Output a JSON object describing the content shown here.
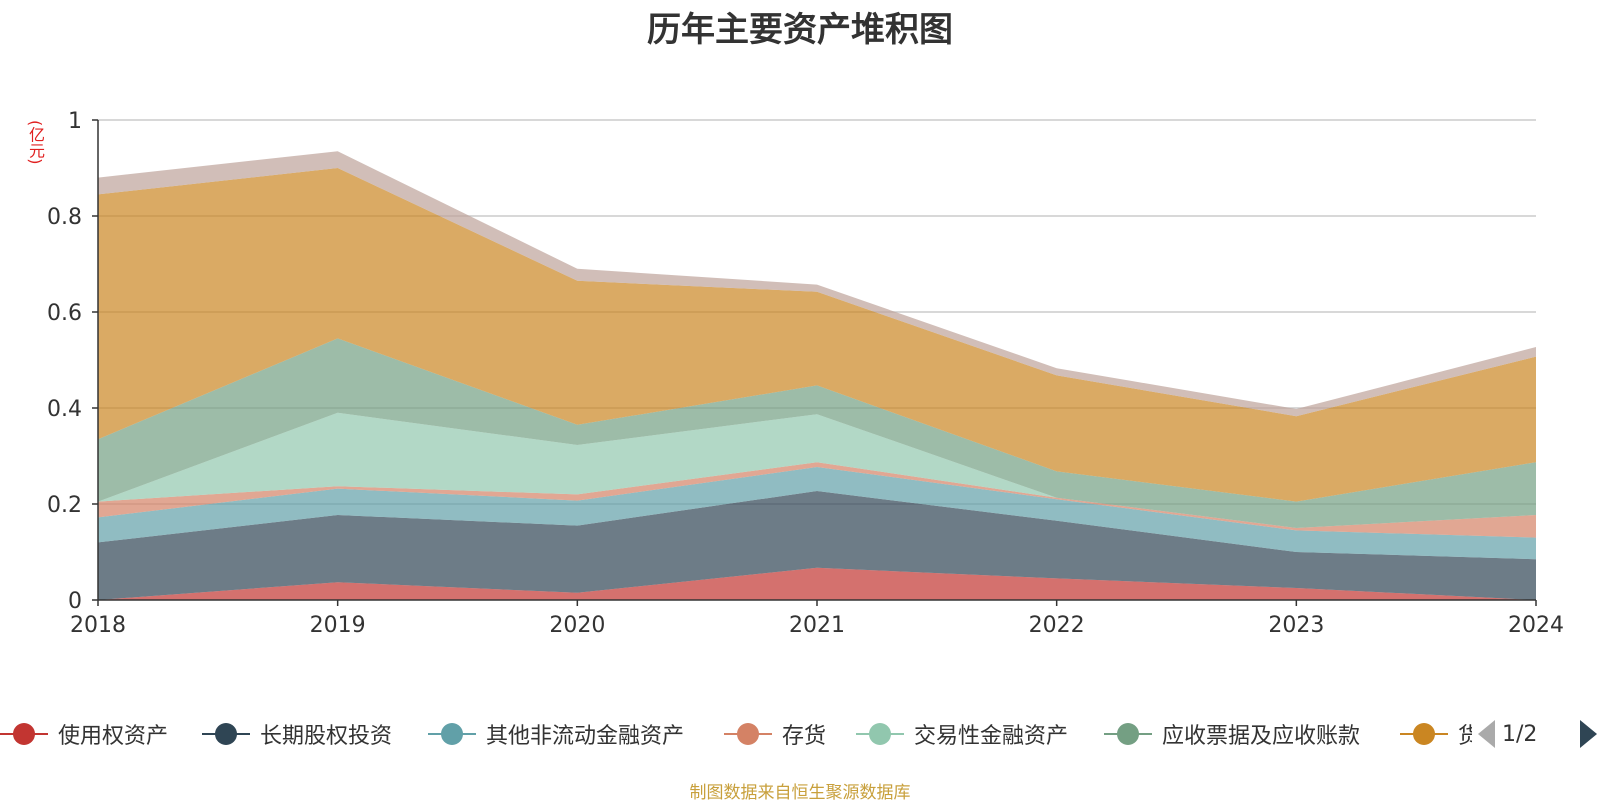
{
  "chart_data": {
    "type": "area",
    "stacked": true,
    "title": "历年主要资产堆积图",
    "unit": "(亿元)",
    "categories": [
      "2018",
      "2019",
      "2020",
      "2021",
      "2022",
      "2023",
      "2024"
    ],
    "ylim": [
      0,
      1
    ],
    "yticks": [
      "0",
      "0.2",
      "0.4",
      "0.6",
      "0.8",
      "1"
    ],
    "grid": true,
    "legend_position": "bottom",
    "legend_page": "1/2",
    "series": [
      {
        "name": "使用权资产",
        "color": "#c23531",
        "values": [
          0.0,
          0.037,
          0.015,
          0.067,
          0.045,
          0.025,
          0.0
        ]
      },
      {
        "name": "长期股权投资",
        "color": "#2f4554",
        "values": [
          0.12,
          0.14,
          0.14,
          0.16,
          0.12,
          0.075,
          0.085
        ]
      },
      {
        "name": "其他非流动金融资产",
        "color": "#61a0a8",
        "values": [
          0.052,
          0.055,
          0.052,
          0.05,
          0.045,
          0.045,
          0.045
        ]
      },
      {
        "name": "存货",
        "color": "#d48265",
        "values": [
          0.033,
          0.005,
          0.013,
          0.01,
          0.003,
          0.005,
          0.047
        ]
      },
      {
        "name": "交易性金融资产",
        "color": "#91c7ae",
        "values": [
          0.0,
          0.153,
          0.103,
          0.1,
          0.0,
          0.0,
          0.0
        ]
      },
      {
        "name": "应收票据及应收账款",
        "color": "#749f83",
        "values": [
          0.13,
          0.155,
          0.042,
          0.06,
          0.055,
          0.055,
          0.11
        ]
      },
      {
        "name": "货币资金",
        "color": "#ca8622",
        "values": [
          0.51,
          0.355,
          0.3,
          0.195,
          0.2,
          0.178,
          0.22
        ]
      },
      {
        "name": "",
        "color": "#bda29a",
        "values": [
          0.035,
          0.035,
          0.025,
          0.015,
          0.015,
          0.015,
          0.02
        ]
      }
    ]
  },
  "legend": {
    "items": [
      {
        "label": "使用权资产",
        "color": "#c23531"
      },
      {
        "label": "长期股权投资",
        "color": "#2f4554"
      },
      {
        "label": "其他非流动金融资产",
        "color": "#61a0a8"
      },
      {
        "label": "存货",
        "color": "#d48265"
      },
      {
        "label": "交易性金融资产",
        "color": "#91c7ae"
      },
      {
        "label": "应收票据及应收账款",
        "color": "#749f83"
      },
      {
        "label": "货币资金",
        "color": "#ca8622"
      }
    ],
    "page": "1/2"
  },
  "source_note": "制图数据来自恒生聚源数据库"
}
